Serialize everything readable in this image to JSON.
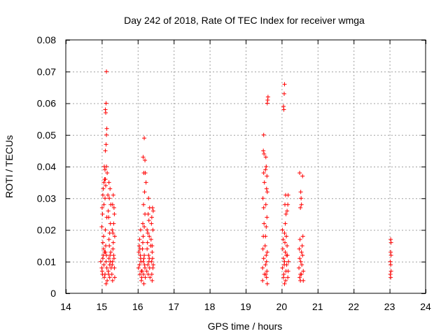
{
  "chart_data": {
    "type": "scatter",
    "title": "Day 242 of 2018, Rate Of TEC Index for receiver wmga",
    "xlabel": "GPS time / hours",
    "ylabel": "ROTI / TECUs",
    "xlim": [
      14,
      24
    ],
    "ylim": [
      0,
      0.08
    ],
    "grid": true,
    "marker": "+",
    "marker_color": "#ff0000",
    "x_ticks": [
      14,
      15,
      16,
      17,
      18,
      19,
      20,
      21,
      22,
      23,
      24
    ],
    "x_tick_labels": [
      "14",
      "15",
      "16",
      "17",
      "18",
      "19",
      "20",
      "21",
      "22",
      "23",
      "24"
    ],
    "y_ticks": [
      0,
      0.01,
      0.02,
      0.03,
      0.04,
      0.05,
      0.06,
      0.07,
      0.08
    ],
    "y_tick_labels": [
      "0",
      "0.01",
      "0.02",
      "0.03",
      "0.04",
      "0.05",
      "0.06",
      "0.07",
      "0.08"
    ],
    "series": [
      {
        "name": "ROTI",
        "points": [
          [
            15.03,
            0.011
          ],
          [
            15.05,
            0.014
          ],
          [
            15.0,
            0.008
          ],
          [
            15.02,
            0.006
          ],
          [
            15.06,
            0.009
          ],
          [
            15.04,
            0.012
          ],
          [
            14.97,
            0.01
          ],
          [
            15.01,
            0.007
          ],
          [
            15.08,
            0.013
          ],
          [
            15.07,
            0.005
          ],
          [
            15.03,
            0.016
          ],
          [
            15.05,
            0.018
          ],
          [
            15.0,
            0.021
          ],
          [
            15.02,
            0.025
          ],
          [
            15.06,
            0.028
          ],
          [
            15.04,
            0.033
          ],
          [
            15.08,
            0.036
          ],
          [
            15.07,
            0.04
          ],
          [
            15.01,
            0.027
          ],
          [
            15.03,
            0.031
          ],
          [
            15.12,
            0.01
          ],
          [
            15.1,
            0.013
          ],
          [
            15.14,
            0.008
          ],
          [
            15.09,
            0.006
          ],
          [
            15.11,
            0.015
          ],
          [
            15.13,
            0.012
          ],
          [
            15.15,
            0.004
          ],
          [
            15.12,
            0.003
          ],
          [
            15.1,
            0.02
          ],
          [
            15.14,
            0.024
          ],
          [
            15.09,
            0.03
          ],
          [
            15.11,
            0.034
          ],
          [
            15.13,
            0.04
          ],
          [
            15.1,
            0.045
          ],
          [
            15.12,
            0.047
          ],
          [
            15.14,
            0.052
          ],
          [
            15.13,
            0.05
          ],
          [
            15.1,
            0.058
          ],
          [
            15.12,
            0.06
          ],
          [
            15.11,
            0.057
          ],
          [
            15.13,
            0.07
          ],
          [
            15.09,
            0.039
          ],
          [
            15.15,
            0.038
          ],
          [
            15.1,
            0.036
          ],
          [
            15.06,
            0.035
          ],
          [
            15.2,
            0.011
          ],
          [
            15.22,
            0.009
          ],
          [
            15.25,
            0.013
          ],
          [
            15.18,
            0.007
          ],
          [
            15.21,
            0.015
          ],
          [
            15.24,
            0.01
          ],
          [
            15.19,
            0.006
          ],
          [
            15.23,
            0.012
          ],
          [
            15.26,
            0.008
          ],
          [
            15.2,
            0.017
          ],
          [
            15.22,
            0.019
          ],
          [
            15.24,
            0.022
          ],
          [
            15.18,
            0.026
          ],
          [
            15.21,
            0.03
          ],
          [
            15.23,
            0.033
          ],
          [
            15.2,
            0.035
          ],
          [
            15.17,
            0.031
          ],
          [
            15.25,
            0.028
          ],
          [
            15.19,
            0.024
          ],
          [
            15.22,
            0.005
          ],
          [
            15.3,
            0.01
          ],
          [
            15.33,
            0.012
          ],
          [
            15.35,
            0.008
          ],
          [
            15.28,
            0.006
          ],
          [
            15.31,
            0.014
          ],
          [
            15.34,
            0.011
          ],
          [
            15.29,
            0.009
          ],
          [
            15.32,
            0.016
          ],
          [
            15.36,
            0.005
          ],
          [
            15.3,
            0.004
          ],
          [
            15.31,
            0.019
          ],
          [
            15.33,
            0.022
          ],
          [
            15.35,
            0.025
          ],
          [
            15.3,
            0.028
          ],
          [
            15.32,
            0.031
          ],
          [
            15.34,
            0.027
          ],
          [
            15.29,
            0.02
          ],
          [
            15.36,
            0.018
          ],
          [
            16.05,
            0.009
          ],
          [
            16.08,
            0.011
          ],
          [
            16.1,
            0.007
          ],
          [
            16.03,
            0.013
          ],
          [
            16.06,
            0.006
          ],
          [
            16.09,
            0.01
          ],
          [
            16.04,
            0.015
          ],
          [
            16.07,
            0.012
          ],
          [
            16.11,
            0.005
          ],
          [
            16.02,
            0.008
          ],
          [
            16.05,
            0.017
          ],
          [
            16.08,
            0.02
          ],
          [
            16.06,
            0.014
          ],
          [
            16.1,
            0.004
          ],
          [
            16.15,
            0.01
          ],
          [
            16.18,
            0.012
          ],
          [
            16.2,
            0.008
          ],
          [
            16.13,
            0.014
          ],
          [
            16.16,
            0.006
          ],
          [
            16.19,
            0.009
          ],
          [
            16.14,
            0.016
          ],
          [
            16.17,
            0.011
          ],
          [
            16.21,
            0.005
          ],
          [
            16.12,
            0.007
          ],
          [
            16.15,
            0.018
          ],
          [
            16.18,
            0.021
          ],
          [
            16.2,
            0.025
          ],
          [
            16.16,
            0.028
          ],
          [
            16.19,
            0.032
          ],
          [
            16.17,
            0.038
          ],
          [
            16.2,
            0.042
          ],
          [
            16.15,
            0.043
          ],
          [
            16.18,
            0.049
          ],
          [
            16.21,
            0.038
          ],
          [
            16.23,
            0.035
          ],
          [
            16.14,
            0.022
          ],
          [
            16.17,
            0.003
          ],
          [
            16.28,
            0.009
          ],
          [
            16.3,
            0.012
          ],
          [
            16.33,
            0.008
          ],
          [
            16.26,
            0.014
          ],
          [
            16.29,
            0.006
          ],
          [
            16.32,
            0.011
          ],
          [
            16.27,
            0.016
          ],
          [
            16.31,
            0.01
          ],
          [
            16.34,
            0.005
          ],
          [
            16.25,
            0.007
          ],
          [
            16.28,
            0.019
          ],
          [
            16.31,
            0.023
          ],
          [
            16.33,
            0.027
          ],
          [
            16.3,
            0.03
          ],
          [
            16.26,
            0.02
          ],
          [
            16.29,
            0.025
          ],
          [
            16.32,
            0.018
          ],
          [
            16.38,
            0.01
          ],
          [
            16.4,
            0.013
          ],
          [
            16.42,
            0.008
          ],
          [
            16.36,
            0.015
          ],
          [
            16.39,
            0.006
          ],
          [
            16.41,
            0.011
          ],
          [
            16.43,
            0.009
          ],
          [
            16.37,
            0.017
          ],
          [
            16.4,
            0.004
          ],
          [
            16.42,
            0.02
          ],
          [
            16.39,
            0.024
          ],
          [
            16.41,
            0.027
          ],
          [
            16.38,
            0.022
          ],
          [
            16.43,
            0.026
          ],
          [
            16.4,
            0.015
          ],
          [
            19.47,
            0.008
          ],
          [
            19.5,
            0.011
          ],
          [
            19.48,
            0.014
          ],
          [
            19.52,
            0.006
          ],
          [
            19.49,
            0.018
          ],
          [
            19.51,
            0.022
          ],
          [
            19.5,
            0.027
          ],
          [
            19.48,
            0.03
          ],
          [
            19.52,
            0.035
          ],
          [
            19.5,
            0.038
          ],
          [
            19.49,
            0.045
          ],
          [
            19.51,
            0.044
          ],
          [
            19.5,
            0.05
          ],
          [
            19.47,
            0.004
          ],
          [
            19.55,
            0.009
          ],
          [
            19.57,
            0.012
          ],
          [
            19.59,
            0.007
          ],
          [
            19.54,
            0.015
          ],
          [
            19.56,
            0.006
          ],
          [
            19.58,
            0.01
          ],
          [
            19.6,
            0.013
          ],
          [
            19.55,
            0.018
          ],
          [
            19.57,
            0.021
          ],
          [
            19.59,
            0.024
          ],
          [
            19.56,
            0.028
          ],
          [
            19.58,
            0.033
          ],
          [
            19.55,
            0.039
          ],
          [
            19.57,
            0.04
          ],
          [
            19.59,
            0.037
          ],
          [
            19.56,
            0.043
          ],
          [
            19.6,
            0.032
          ],
          [
            19.58,
            0.005
          ],
          [
            19.6,
            0.003
          ],
          [
            19.6,
            0.06
          ],
          [
            19.62,
            0.062
          ],
          [
            19.61,
            0.061
          ],
          [
            20.02,
            0.008
          ],
          [
            20.05,
            0.011
          ],
          [
            20.03,
            0.014
          ],
          [
            20.06,
            0.006
          ],
          [
            20.04,
            0.017
          ],
          [
            20.07,
            0.009
          ],
          [
            20.02,
            0.02
          ],
          [
            20.05,
            0.005
          ],
          [
            20.08,
            0.01
          ],
          [
            20.1,
            0.013
          ],
          [
            20.12,
            0.007
          ],
          [
            20.09,
            0.016
          ],
          [
            20.11,
            0.004
          ],
          [
            20.13,
            0.012
          ],
          [
            20.08,
            0.019
          ],
          [
            20.1,
            0.022
          ],
          [
            20.12,
            0.025
          ],
          [
            20.09,
            0.028
          ],
          [
            20.11,
            0.031
          ],
          [
            20.13,
            0.018
          ],
          [
            20.08,
            0.003
          ],
          [
            20.05,
            0.059
          ],
          [
            20.06,
            0.058
          ],
          [
            20.07,
            0.063
          ],
          [
            20.08,
            0.066
          ],
          [
            20.14,
            0.009
          ],
          [
            20.16,
            0.012
          ],
          [
            20.18,
            0.007
          ],
          [
            20.15,
            0.015
          ],
          [
            20.17,
            0.005
          ],
          [
            20.19,
            0.01
          ],
          [
            20.15,
            0.026
          ],
          [
            20.17,
            0.028
          ],
          [
            20.18,
            0.031
          ],
          [
            20.48,
            0.008
          ],
          [
            20.5,
            0.011
          ],
          [
            20.52,
            0.006
          ],
          [
            20.49,
            0.014
          ],
          [
            20.51,
            0.017
          ],
          [
            20.53,
            0.01
          ],
          [
            20.55,
            0.013
          ],
          [
            20.5,
            0.005
          ],
          [
            20.52,
            0.004
          ],
          [
            20.56,
            0.009
          ],
          [
            20.58,
            0.012
          ],
          [
            20.6,
            0.007
          ],
          [
            20.57,
            0.015
          ],
          [
            20.59,
            0.018
          ],
          [
            20.55,
            0.006
          ],
          [
            20.6,
            0.004
          ],
          [
            20.52,
            0.027
          ],
          [
            20.54,
            0.03
          ],
          [
            20.53,
            0.032
          ],
          [
            20.55,
            0.028
          ],
          [
            20.5,
            0.038
          ],
          [
            20.58,
            0.037
          ],
          [
            23.03,
            0.017
          ],
          [
            23.04,
            0.016
          ],
          [
            23.03,
            0.013
          ],
          [
            23.04,
            0.012
          ],
          [
            23.02,
            0.01
          ],
          [
            23.03,
            0.009
          ],
          [
            23.04,
            0.007
          ],
          [
            23.02,
            0.006
          ],
          [
            23.03,
            0.005
          ]
        ]
      }
    ]
  }
}
